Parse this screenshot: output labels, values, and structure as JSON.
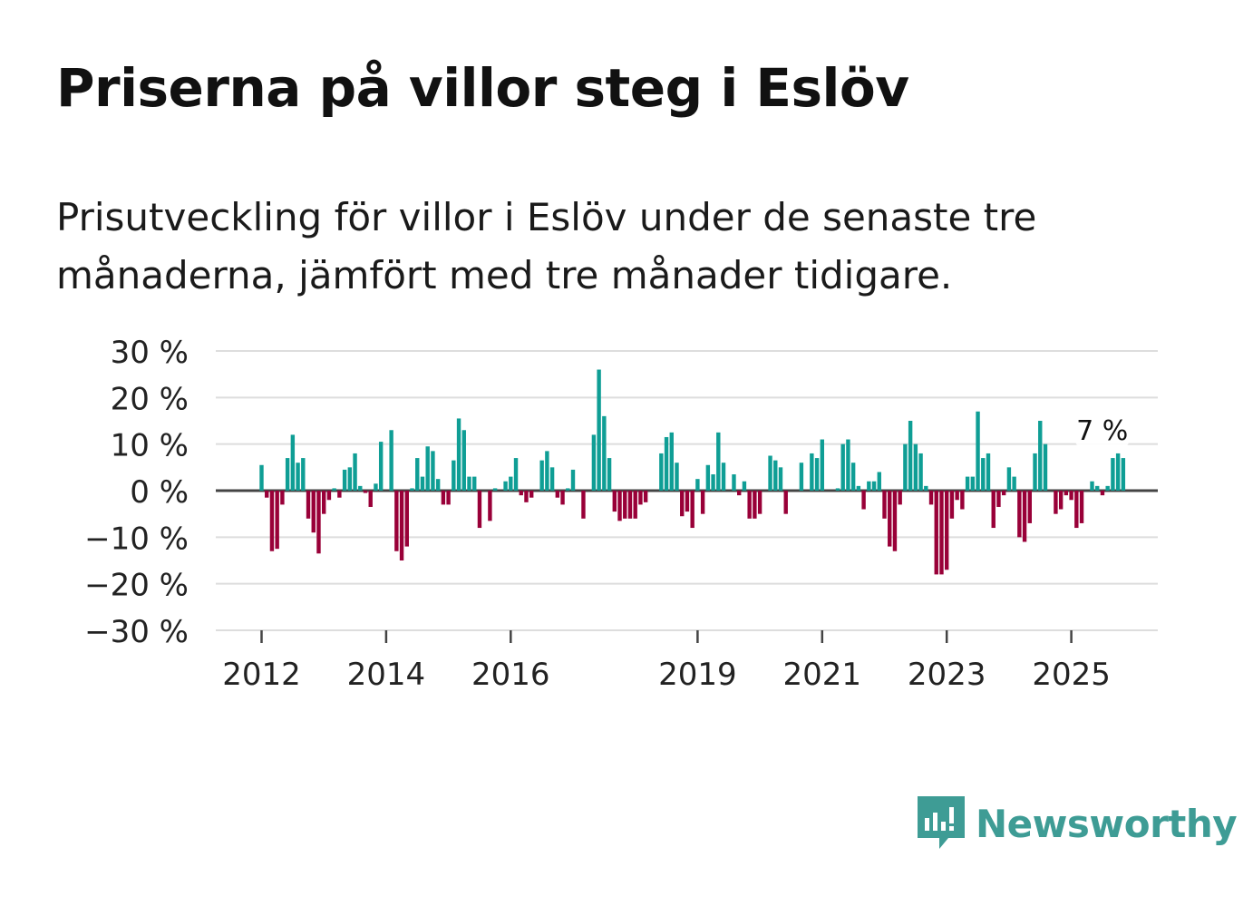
{
  "title": "Priserna på villor steg i Eslöv",
  "subtitle": "Prisutveckling för villor i Eslöv under de senaste tre månaderna, jämfört med tre månader tidigare.",
  "brand": {
    "name": "Newsworthy",
    "icon": "newsworthy-logo-icon",
    "color": "#3e9c95"
  },
  "colors": {
    "positive": "#0f9e95",
    "negative": "#990038",
    "grid": "#dddddd",
    "zero": "#444444",
    "text": "#222222"
  },
  "chart_data": {
    "type": "bar",
    "title": "Priserna på villor steg i Eslöv",
    "xlabel": "",
    "ylabel": "",
    "ylim": [
      -30,
      30
    ],
    "yticks": [
      30,
      20,
      10,
      0,
      -10,
      -20,
      -30
    ],
    "ytick_labels": [
      "30 %",
      "20 %",
      "10 %",
      "0 %",
      "−10 %",
      "−20 %",
      "−30 %"
    ],
    "x_start": "2012-01",
    "xticks": [
      {
        "label": "2012",
        "month_index": 0
      },
      {
        "label": "2014",
        "month_index": 24
      },
      {
        "label": "2016",
        "month_index": 48
      },
      {
        "label": "2019",
        "month_index": 84
      },
      {
        "label": "2021",
        "month_index": 108
      },
      {
        "label": "2023",
        "month_index": 132
      },
      {
        "label": "2025",
        "month_index": 156
      }
    ],
    "grid": true,
    "annotation": {
      "text": "7 %",
      "month_index": 163,
      "value": 7
    },
    "values": [
      5.5,
      -1.5,
      -13,
      -12.5,
      -3,
      7,
      12,
      6,
      7,
      -6,
      -9,
      -13.5,
      -5,
      -2,
      0.5,
      -1.5,
      4.5,
      5,
      8,
      1,
      -0.5,
      -3.5,
      1.5,
      10.5,
      0,
      13,
      -13,
      -15,
      -12,
      0.5,
      7,
      3,
      9.5,
      8.5,
      2.5,
      -3,
      -3,
      6.5,
      15.5,
      13,
      3,
      3,
      -8,
      0,
      -6.5,
      0.5,
      0,
      2,
      3,
      7,
      -1,
      -2.5,
      -1.5,
      0,
      6.5,
      8.5,
      5,
      -1.5,
      -3,
      0.5,
      4.5,
      0,
      -6,
      0,
      12,
      26,
      16,
      7,
      -4.5,
      -6.5,
      -6,
      -6,
      -6,
      -3,
      -2.5,
      0,
      0,
      8,
      11.5,
      12.5,
      6,
      -5.5,
      -4.5,
      -8,
      2.5,
      -5,
      5.5,
      3.5,
      12.5,
      6,
      0,
      3.5,
      -1,
      2,
      -6,
      -6,
      -5,
      0,
      7.5,
      6.5,
      5,
      -5,
      0,
      0,
      6,
      0,
      8,
      7,
      11,
      0,
      0,
      0.5,
      10,
      11,
      6,
      1,
      -4,
      2,
      2,
      4,
      -6,
      -12,
      -13,
      -3,
      10,
      15,
      10,
      8,
      1,
      -3,
      -18,
      -18,
      -17,
      -6,
      -2,
      -4,
      3,
      3,
      17,
      7,
      8,
      -8,
      -3.5,
      -1,
      5,
      3,
      -10,
      -11,
      -7,
      8,
      15,
      10,
      0,
      -5,
      -4,
      -1,
      -2,
      -8,
      -7,
      0,
      2,
      1,
      -1,
      1,
      7,
      8,
      7
    ]
  }
}
